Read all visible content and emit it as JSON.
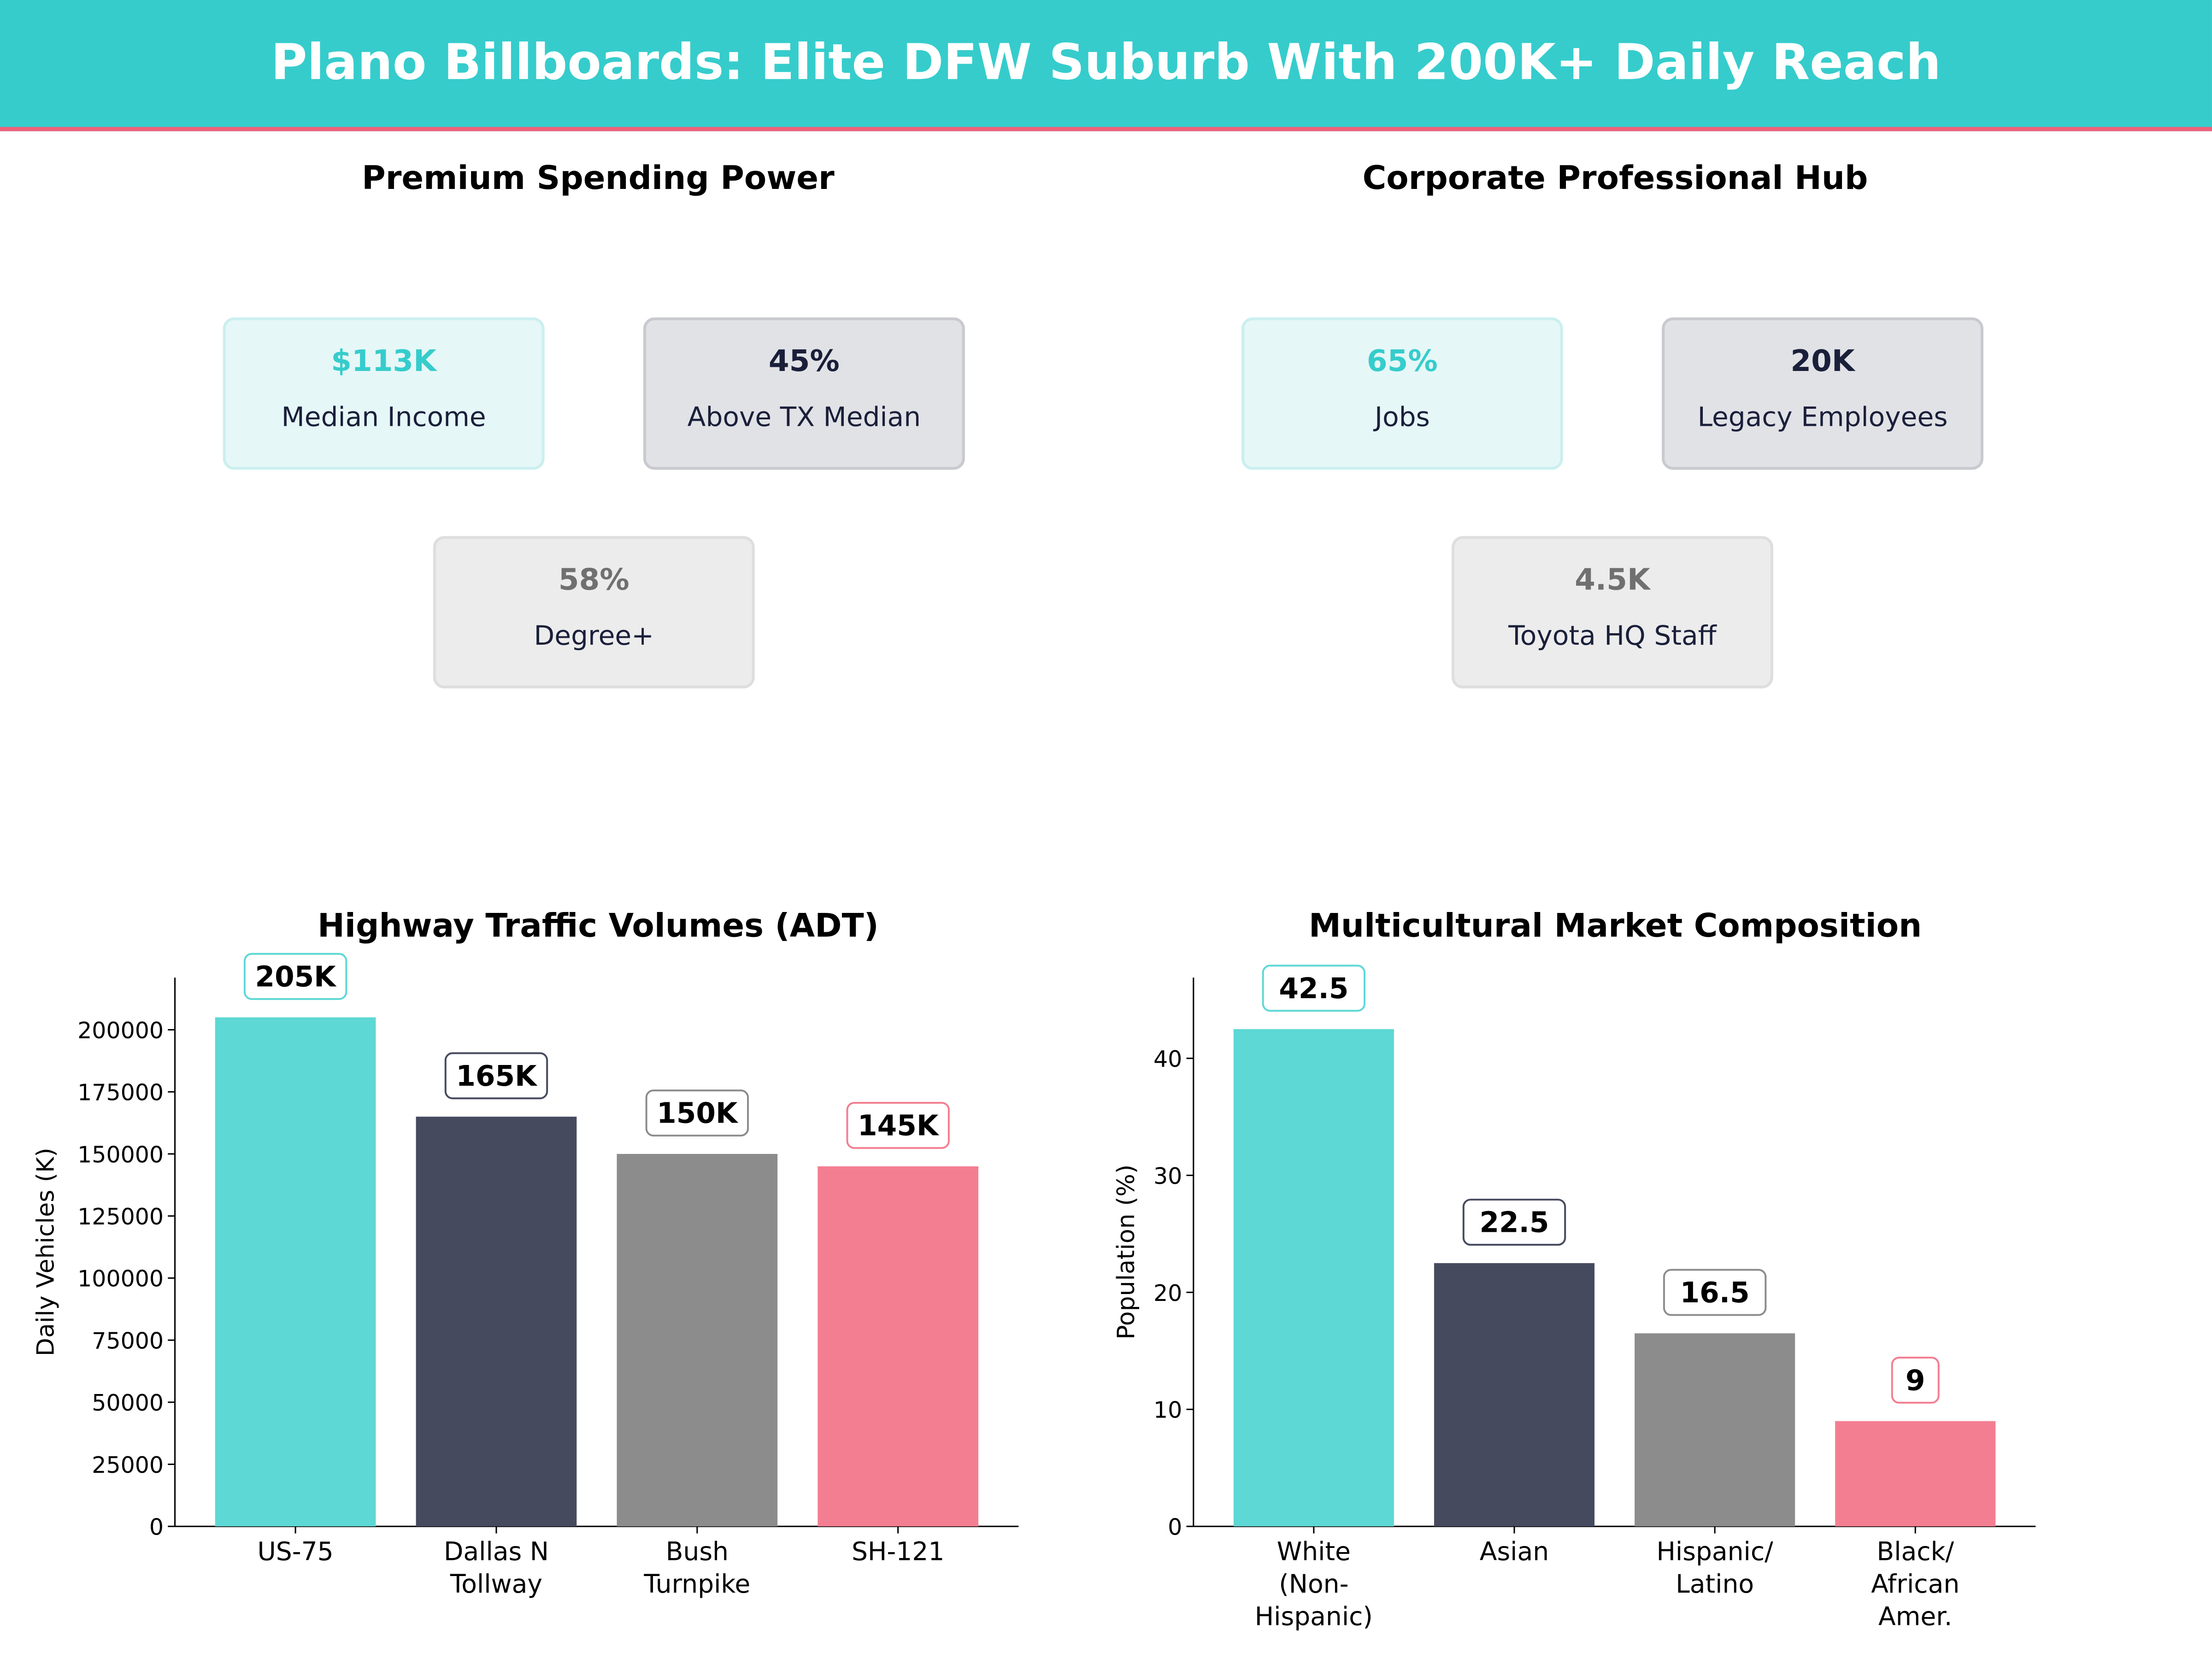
{
  "header": {
    "title": "Plano Billboards: Elite DFW Suburb With 200K+ Daily Reach",
    "bg_color": "#36cccc",
    "accent_line": "#f0607a"
  },
  "panels": [
    {
      "title": "Premium Spending Power",
      "cards": [
        {
          "value": "$113K",
          "label": "Median Income",
          "style": "teal"
        },
        {
          "value": "45%",
          "label": "Above TX Median",
          "style": "dark"
        },
        {
          "value": "58%",
          "label": "Degree+",
          "style": "gray"
        }
      ]
    },
    {
      "title": "Corporate Professional Hub",
      "cards": [
        {
          "value": "65%",
          "label": "Jobs",
          "style": "teal"
        },
        {
          "value": "20K",
          "label": "Legacy Employees",
          "style": "dark"
        },
        {
          "value": "4.5K",
          "label": "Toyota HQ Staff",
          "style": "gray"
        }
      ]
    }
  ],
  "chart_data": [
    {
      "type": "bar",
      "title": "Highway Traffic Volumes (ADT)",
      "xlabel": "",
      "ylabel": "Daily Vehicles (K)",
      "categories": [
        [
          "US-75"
        ],
        [
          "Dallas N",
          "Tollway"
        ],
        [
          "Bush",
          "Turnpike"
        ],
        [
          "SH-121"
        ]
      ],
      "values": [
        205000,
        165000,
        150000,
        145000
      ],
      "data_labels": [
        "205K",
        "165K",
        "150K",
        "145K"
      ],
      "colors": [
        "#5dd8d5",
        "#464a5f",
        "#8c8c8c",
        "#f47e91"
      ],
      "label_borders": [
        "#5dd8d5",
        "#464a5f",
        "#8c8c8c",
        "#f47e91"
      ],
      "yticks": [
        0,
        25000,
        50000,
        75000,
        100000,
        125000,
        150000,
        175000,
        200000
      ],
      "ylim": [
        0,
        221000
      ],
      "grid": false
    },
    {
      "type": "bar",
      "title": "Multicultural Market Composition",
      "xlabel": "",
      "ylabel": "Population (%)",
      "categories": [
        [
          "White",
          "(Non-",
          "Hispanic)"
        ],
        [
          "Asian"
        ],
        [
          "Hispanic/",
          "Latino"
        ],
        [
          "Black/",
          "African",
          "Amer."
        ]
      ],
      "values": [
        42.5,
        22.5,
        16.5,
        9
      ],
      "data_labels": [
        "42.5",
        "22.5",
        "16.5",
        "9"
      ],
      "colors": [
        "#5dd8d5",
        "#464a5f",
        "#8c8c8c",
        "#f47e91"
      ],
      "label_borders": [
        "#5dd8d5",
        "#464a5f",
        "#8c8c8c",
        "#f47e91"
      ],
      "yticks": [
        0,
        10,
        20,
        30,
        40
      ],
      "ylim": [
        0,
        46.9
      ],
      "grid": false
    }
  ]
}
